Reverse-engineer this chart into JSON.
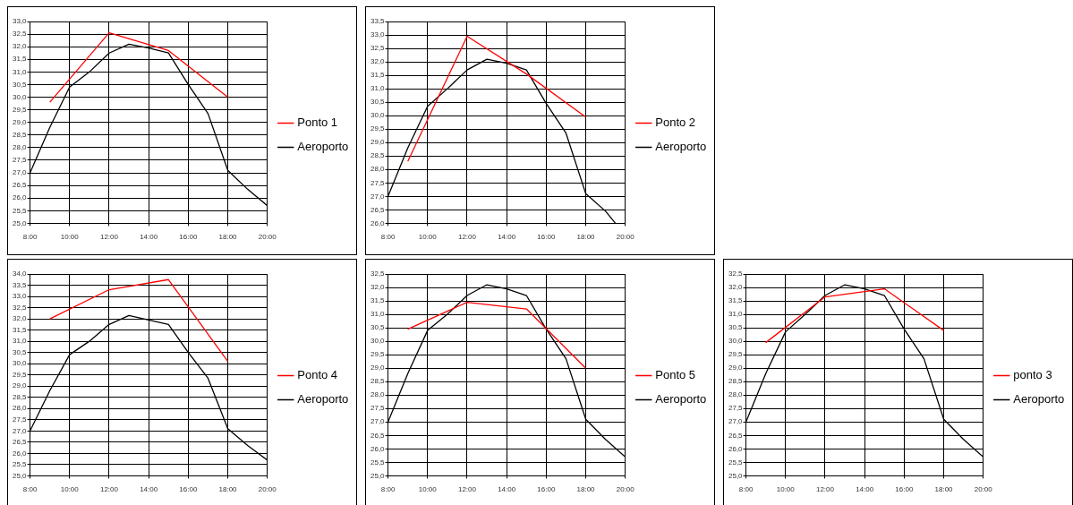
{
  "chart_data": [
    {
      "type": "line",
      "legend": "right",
      "grid": true,
      "marker": "none",
      "xlim": [
        8,
        20
      ],
      "xticks": [
        {
          "value": 8,
          "label": "8:00"
        },
        {
          "value": 10,
          "label": "10:00"
        },
        {
          "value": 12,
          "label": "12:00"
        },
        {
          "value": 14,
          "label": "14:00"
        },
        {
          "value": 16,
          "label": "16:00"
        },
        {
          "value": 18,
          "label": "18:00"
        },
        {
          "value": 20,
          "label": "20:00"
        }
      ],
      "ylim": [
        25,
        33
      ],
      "yticks": [
        {
          "value": 25,
          "label": "25,0"
        },
        {
          "value": 25.5,
          "label": "25,5"
        },
        {
          "value": 26,
          "label": "26,0"
        },
        {
          "value": 26.5,
          "label": "26,5"
        },
        {
          "value": 27,
          "label": "27,0"
        },
        {
          "value": 27.5,
          "label": "27,5"
        },
        {
          "value": 28,
          "label": "28,0"
        },
        {
          "value": 28.5,
          "label": "28,5"
        },
        {
          "value": 29,
          "label": "29,0"
        },
        {
          "value": 29.5,
          "label": "29,5"
        },
        {
          "value": 30,
          "label": "30,0"
        },
        {
          "value": 30.5,
          "label": "30,5"
        },
        {
          "value": 31,
          "label": "31,0"
        },
        {
          "value": 31.5,
          "label": "31,5"
        },
        {
          "value": 32,
          "label": "32,0"
        },
        {
          "value": 32.5,
          "label": "32,5"
        },
        {
          "value": 33,
          "label": "33,0"
        }
      ],
      "series": [
        {
          "name": "Ponto 1",
          "color": "#ff0000",
          "x": [
            9,
            12,
            15,
            18
          ],
          "values": [
            29.8,
            32.55,
            31.85,
            30.0
          ]
        },
        {
          "name": "Aeroporto",
          "color": "#000000",
          "x": [
            8,
            9,
            10,
            11,
            12,
            13,
            14,
            15,
            16,
            17,
            18,
            19,
            20
          ],
          "values": [
            27.0,
            28.8,
            30.4,
            31.0,
            31.75,
            32.1,
            31.95,
            31.75,
            30.5,
            29.35,
            27.1,
            26.35,
            25.7
          ]
        }
      ]
    },
    {
      "type": "line",
      "legend": "right",
      "grid": true,
      "marker": "none",
      "xlim": [
        8,
        20
      ],
      "xticks": [
        {
          "value": 8,
          "label": "8:00"
        },
        {
          "value": 10,
          "label": "10:00"
        },
        {
          "value": 12,
          "label": "12:00"
        },
        {
          "value": 14,
          "label": "14:00"
        },
        {
          "value": 16,
          "label": "16:00"
        },
        {
          "value": 18,
          "label": "18:00"
        },
        {
          "value": 20,
          "label": "20:00"
        }
      ],
      "ylim": [
        26,
        33.5
      ],
      "yticks": [
        {
          "value": 26,
          "label": "26,0"
        },
        {
          "value": 26.5,
          "label": "26,5"
        },
        {
          "value": 27,
          "label": "27,0"
        },
        {
          "value": 27.5,
          "label": "27,5"
        },
        {
          "value": 28,
          "label": "28,0"
        },
        {
          "value": 28.5,
          "label": "28,5"
        },
        {
          "value": 29,
          "label": "29,0"
        },
        {
          "value": 29.5,
          "label": "29,5"
        },
        {
          "value": 30,
          "label": "30,0"
        },
        {
          "value": 30.5,
          "label": "30,5"
        },
        {
          "value": 31,
          "label": "31,0"
        },
        {
          "value": 31.5,
          "label": "31,5"
        },
        {
          "value": 32,
          "label": "32,0"
        },
        {
          "value": 32.5,
          "label": "32,5"
        },
        {
          "value": 33,
          "label": "33,0"
        },
        {
          "value": 33.5,
          "label": "33,5"
        }
      ],
      "series": [
        {
          "name": "Ponto 2",
          "color": "#ff0000",
          "x": [
            9,
            12,
            15,
            18
          ],
          "values": [
            28.3,
            32.95,
            31.55,
            29.95
          ]
        },
        {
          "name": "Aeroporto",
          "color": "#000000",
          "x": [
            8,
            9,
            10,
            11,
            12,
            13,
            14,
            15,
            16,
            17,
            18,
            19,
            19.5
          ],
          "values": [
            27.0,
            28.8,
            30.35,
            31.0,
            31.7,
            32.1,
            31.95,
            31.7,
            30.45,
            29.35,
            27.1,
            26.45,
            26.0
          ]
        }
      ]
    },
    {
      "type": "line",
      "legend": "right",
      "grid": true,
      "marker": "none",
      "xlim": [
        8,
        20
      ],
      "xticks": [
        {
          "value": 8,
          "label": "8:00"
        },
        {
          "value": 10,
          "label": "10:00"
        },
        {
          "value": 12,
          "label": "12:00"
        },
        {
          "value": 14,
          "label": "14:00"
        },
        {
          "value": 16,
          "label": "16:00"
        },
        {
          "value": 18,
          "label": "18:00"
        },
        {
          "value": 20,
          "label": "20:00"
        }
      ],
      "ylim": [
        25,
        34
      ],
      "yticks": [
        {
          "value": 25,
          "label": "25,0"
        },
        {
          "value": 25.5,
          "label": "25,5"
        },
        {
          "value": 26,
          "label": "26,0"
        },
        {
          "value": 26.5,
          "label": "26,5"
        },
        {
          "value": 27,
          "label": "27,0"
        },
        {
          "value": 27.5,
          "label": "27,5"
        },
        {
          "value": 28,
          "label": "28,0"
        },
        {
          "value": 28.5,
          "label": "28,5"
        },
        {
          "value": 29,
          "label": "29,0"
        },
        {
          "value": 29.5,
          "label": "29,5"
        },
        {
          "value": 30,
          "label": "30,0"
        },
        {
          "value": 30.5,
          "label": "30,5"
        },
        {
          "value": 31,
          "label": "31,0"
        },
        {
          "value": 31.5,
          "label": "31,5"
        },
        {
          "value": 32,
          "label": "32,0"
        },
        {
          "value": 32.5,
          "label": "32,5"
        },
        {
          "value": 33,
          "label": "33,0"
        },
        {
          "value": 33.5,
          "label": "33,5"
        },
        {
          "value": 34,
          "label": "34,0"
        }
      ],
      "series": [
        {
          "name": "Ponto 4",
          "color": "#ff0000",
          "x": [
            9,
            12,
            15,
            18
          ],
          "values": [
            32.0,
            33.3,
            33.75,
            30.1
          ]
        },
        {
          "name": "Aeroporto",
          "color": "#000000",
          "x": [
            8,
            9,
            10,
            11,
            12,
            13,
            14,
            15,
            16,
            17,
            18,
            19,
            20
          ],
          "values": [
            27.0,
            28.8,
            30.4,
            31.0,
            31.75,
            32.15,
            31.95,
            31.75,
            30.5,
            29.35,
            27.1,
            26.35,
            25.7
          ]
        }
      ]
    },
    {
      "type": "line",
      "legend": "right",
      "grid": true,
      "marker": "none",
      "xlim": [
        8,
        20
      ],
      "xticks": [
        {
          "value": 8,
          "label": "8:00"
        },
        {
          "value": 10,
          "label": "10:00"
        },
        {
          "value": 12,
          "label": "12:00"
        },
        {
          "value": 14,
          "label": "14:00"
        },
        {
          "value": 16,
          "label": "16:00"
        },
        {
          "value": 18,
          "label": "18:00"
        },
        {
          "value": 20,
          "label": "20:00"
        }
      ],
      "ylim": [
        25,
        32.5
      ],
      "yticks": [
        {
          "value": 25,
          "label": "25,0"
        },
        {
          "value": 25.5,
          "label": "25,5"
        },
        {
          "value": 26,
          "label": "26,0"
        },
        {
          "value": 26.5,
          "label": "26,5"
        },
        {
          "value": 27,
          "label": "27,0"
        },
        {
          "value": 27.5,
          "label": "27,5"
        },
        {
          "value": 28,
          "label": "28,0"
        },
        {
          "value": 28.5,
          "label": "28,5"
        },
        {
          "value": 29,
          "label": "29,0"
        },
        {
          "value": 29.5,
          "label": "29,5"
        },
        {
          "value": 30,
          "label": "30,0"
        },
        {
          "value": 30.5,
          "label": "30,5"
        },
        {
          "value": 31,
          "label": "31,0"
        },
        {
          "value": 31.5,
          "label": "31,5"
        },
        {
          "value": 32,
          "label": "32,0"
        },
        {
          "value": 32.5,
          "label": "32,5"
        }
      ],
      "series": [
        {
          "name": "Ponto 5",
          "color": "#ff0000",
          "x": [
            9,
            12,
            15,
            18
          ],
          "values": [
            30.45,
            31.45,
            31.2,
            29.0
          ]
        },
        {
          "name": "Aeroporto",
          "color": "#000000",
          "x": [
            8,
            9,
            10,
            11,
            12,
            13,
            14,
            15,
            16,
            17,
            18,
            19,
            20
          ],
          "values": [
            27.0,
            28.8,
            30.4,
            31.0,
            31.7,
            32.1,
            31.95,
            31.7,
            30.45,
            29.35,
            27.1,
            26.35,
            25.7
          ]
        }
      ]
    },
    {
      "type": "line",
      "legend": "right",
      "grid": true,
      "marker": "none",
      "xlim": [
        8,
        20
      ],
      "xticks": [
        {
          "value": 8,
          "label": "8:00"
        },
        {
          "value": 10,
          "label": "10:00"
        },
        {
          "value": 12,
          "label": "12:00"
        },
        {
          "value": 14,
          "label": "14:00"
        },
        {
          "value": 16,
          "label": "16:00"
        },
        {
          "value": 18,
          "label": "18:00"
        },
        {
          "value": 20,
          "label": "20:00"
        }
      ],
      "ylim": [
        25,
        32.5
      ],
      "yticks": [
        {
          "value": 25,
          "label": "25,0"
        },
        {
          "value": 25.5,
          "label": "25,5"
        },
        {
          "value": 26,
          "label": "26,0"
        },
        {
          "value": 26.5,
          "label": "26,5"
        },
        {
          "value": 27,
          "label": "27,0"
        },
        {
          "value": 27.5,
          "label": "27,5"
        },
        {
          "value": 28,
          "label": "28,0"
        },
        {
          "value": 28.5,
          "label": "28,5"
        },
        {
          "value": 29,
          "label": "29,0"
        },
        {
          "value": 29.5,
          "label": "29,5"
        },
        {
          "value": 30,
          "label": "30,0"
        },
        {
          "value": 30.5,
          "label": "30,5"
        },
        {
          "value": 31,
          "label": "31,0"
        },
        {
          "value": 31.5,
          "label": "31,5"
        },
        {
          "value": 32,
          "label": "32,0"
        },
        {
          "value": 32.5,
          "label": "32,5"
        }
      ],
      "series": [
        {
          "name": "ponto 3",
          "color": "#ff0000",
          "x": [
            9,
            12,
            15,
            18
          ],
          "values": [
            29.95,
            31.65,
            31.95,
            30.4
          ]
        },
        {
          "name": "Aeroporto",
          "color": "#000000",
          "x": [
            8,
            9,
            10,
            11,
            12,
            13,
            14,
            15,
            16,
            17,
            18,
            19,
            20
          ],
          "values": [
            27.0,
            28.8,
            30.35,
            31.0,
            31.7,
            32.1,
            31.95,
            31.7,
            30.45,
            29.35,
            27.1,
            26.35,
            25.7
          ]
        }
      ]
    }
  ]
}
